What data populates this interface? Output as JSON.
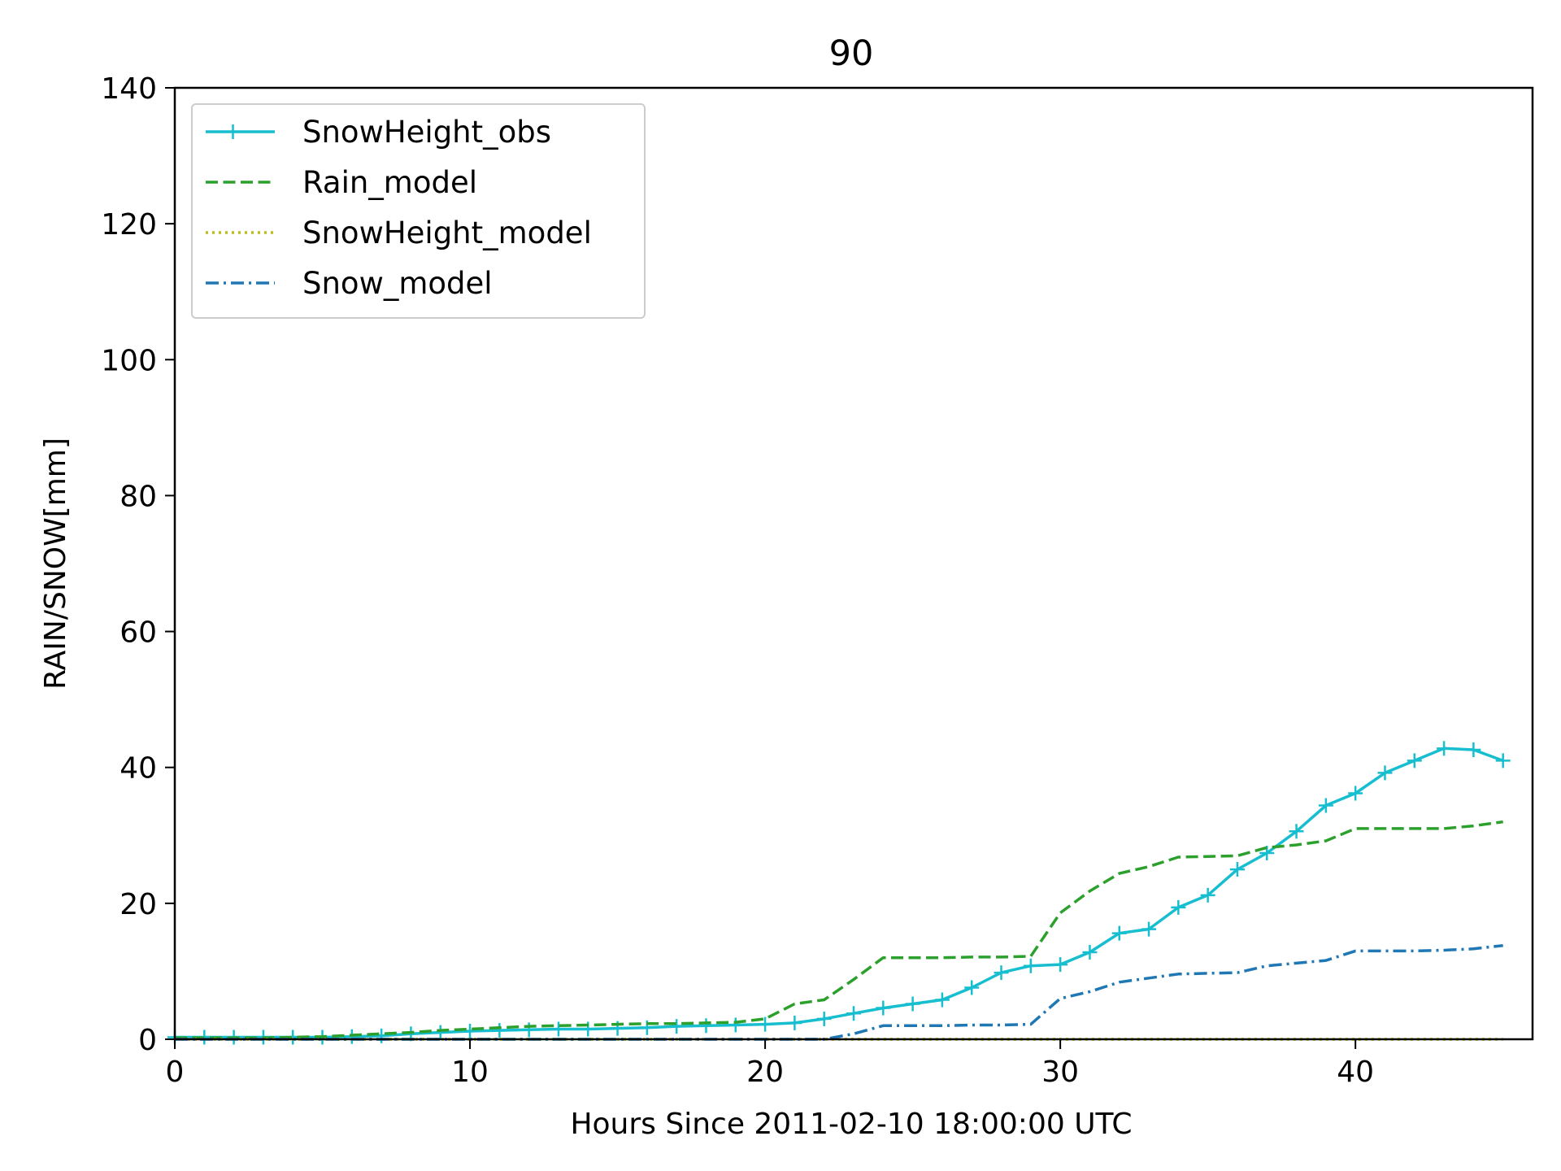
{
  "chart_data": {
    "type": "line",
    "title": "90",
    "xlabel": "Hours Since 2011-02-10 18:00:00 UTC",
    "ylabel": "RAIN/SNOW[mm]",
    "xlim": [
      0,
      46
    ],
    "ylim": [
      0,
      140
    ],
    "xticks": [
      0,
      10,
      20,
      30,
      40
    ],
    "yticks": [
      0,
      20,
      40,
      60,
      80,
      100,
      120,
      140
    ],
    "grid": false,
    "legend_position": "upper-left",
    "x": [
      0,
      1,
      2,
      3,
      4,
      5,
      6,
      7,
      8,
      9,
      10,
      11,
      12,
      13,
      14,
      15,
      16,
      17,
      18,
      19,
      20,
      21,
      22,
      23,
      24,
      25,
      26,
      27,
      28,
      29,
      30,
      31,
      32,
      33,
      34,
      35,
      36,
      37,
      38,
      39,
      40,
      41,
      42,
      43,
      44,
      45
    ],
    "series": [
      {
        "name": "SnowHeight_obs",
        "color": "#17becf",
        "style": "solid-plus",
        "values": [
          0.3,
          0.3,
          0.3,
          0.3,
          0.3,
          0.3,
          0.4,
          0.5,
          0.8,
          1.0,
          1.2,
          1.3,
          1.4,
          1.5,
          1.5,
          1.6,
          1.7,
          1.9,
          2.0,
          2.1,
          2.2,
          2.4,
          3.0,
          3.8,
          4.6,
          5.2,
          5.8,
          7.6,
          9.8,
          10.8,
          11.0,
          12.8,
          15.6,
          16.2,
          19.4,
          21.2,
          25.0,
          27.4,
          30.6,
          34.4,
          36.2,
          39.2,
          41.0,
          42.8,
          42.6,
          41.0
        ]
      },
      {
        "name": "Rain_model",
        "color": "#2ca02c",
        "style": "dashed",
        "values": [
          0.2,
          0.2,
          0.2,
          0.2,
          0.3,
          0.4,
          0.6,
          0.8,
          1.0,
          1.3,
          1.5,
          1.7,
          1.9,
          2.0,
          2.1,
          2.2,
          2.3,
          2.3,
          2.4,
          2.5,
          3.0,
          5.2,
          5.8,
          8.8,
          12.0,
          12.0,
          12.0,
          12.1,
          12.1,
          12.2,
          18.6,
          21.8,
          24.4,
          25.4,
          26.8,
          26.9,
          27.0,
          28.2,
          28.6,
          29.2,
          31.0,
          31.0,
          31.0,
          31.0,
          31.4,
          32.0
        ]
      },
      {
        "name": "SnowHeight_model",
        "color": "#bcbd22",
        "style": "dotted",
        "values": [
          0,
          0,
          0,
          0,
          0,
          0,
          0,
          0,
          0,
          0,
          0,
          0,
          0,
          0,
          0,
          0,
          0,
          0,
          0,
          0,
          0,
          0,
          0,
          0,
          0,
          0,
          0,
          0,
          0,
          0,
          0,
          0,
          0,
          0,
          0,
          0,
          0,
          0,
          0,
          0,
          0,
          0,
          0,
          0,
          0,
          0
        ]
      },
      {
        "name": "Snow_model",
        "color": "#1f77b4",
        "style": "dashdot",
        "values": [
          0,
          0,
          0,
          0,
          0,
          0,
          0,
          0,
          0,
          0,
          0,
          0,
          0,
          0,
          0,
          0,
          0,
          0,
          0,
          0,
          0,
          0,
          0,
          0.8,
          2.0,
          2.0,
          2.0,
          2.1,
          2.1,
          2.2,
          6.0,
          7.0,
          8.4,
          9.0,
          9.6,
          9.7,
          9.8,
          10.8,
          11.2,
          11.6,
          13.0,
          13.0,
          13.0,
          13.1,
          13.3,
          13.8
        ]
      }
    ]
  }
}
